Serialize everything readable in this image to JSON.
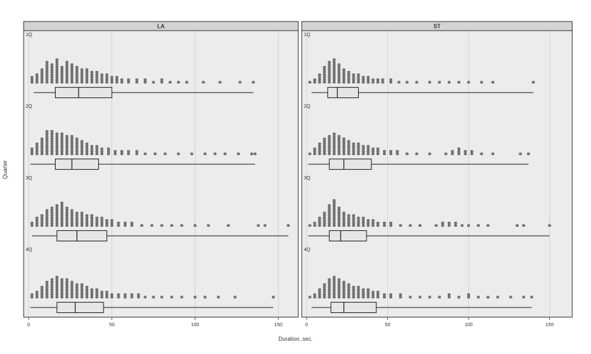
{
  "chart_data": {
    "type": "dotplot-boxplot",
    "xlabel": "Duration..sec.",
    "ylabel": "Quarter",
    "x_ticks": [
      0,
      50,
      100,
      150
    ],
    "grid": true,
    "panels": [
      {
        "name": "LA",
        "xlim": [
          -3,
          162
        ],
        "rows": [
          {
            "quarter": "1Q",
            "box": {
              "whisker_low": 3,
              "q1": 16,
              "median": 30,
              "q3": 50,
              "whisker_high": 135
            },
            "dots": {
              "x": [
                2,
                5,
                8,
                11,
                14,
                17,
                20,
                23,
                26,
                29,
                32,
                35,
                38,
                41,
                44,
                47,
                50,
                53,
                56,
                60,
                65,
                70,
                75,
                80,
                85,
                90,
                95,
                105,
                115,
                127,
                135
              ],
              "counts": [
                3,
                4,
                6,
                9,
                8,
                10,
                7,
                9,
                8,
                7,
                6,
                6,
                5,
                5,
                4,
                4,
                3,
                3,
                2,
                2,
                2,
                2,
                1,
                2,
                1,
                1,
                1,
                1,
                1,
                1,
                1
              ]
            }
          },
          {
            "quarter": "2Q",
            "box": {
              "whisker_low": 1,
              "q1": 16,
              "median": 26,
              "q3": 42,
              "whisker_high": 136
            },
            "dots": {
              "x": [
                2,
                5,
                8,
                11,
                14,
                17,
                20,
                23,
                26,
                29,
                32,
                35,
                38,
                41,
                44,
                48,
                52,
                56,
                60,
                65,
                70,
                76,
                82,
                90,
                98,
                106,
                112,
                118,
                126,
                134,
                136
              ],
              "counts": [
                3,
                5,
                7,
                10,
                10,
                9,
                9,
                8,
                8,
                7,
                6,
                5,
                4,
                4,
                3,
                3,
                2,
                2,
                2,
                2,
                1,
                1,
                1,
                1,
                1,
                1,
                1,
                1,
                1,
                1,
                1
              ]
            }
          },
          {
            "quarter": "3Q",
            "box": {
              "whisker_low": 2,
              "q1": 17,
              "median": 29,
              "q3": 47,
              "whisker_high": 156
            },
            "dots": {
              "x": [
                2,
                5,
                8,
                11,
                14,
                17,
                20,
                23,
                26,
                29,
                32,
                35,
                38,
                41,
                44,
                47,
                50,
                54,
                58,
                62,
                68,
                74,
                80,
                86,
                92,
                100,
                108,
                120,
                138,
                142,
                156
              ],
              "counts": [
                2,
                4,
                5,
                7,
                8,
                9,
                10,
                8,
                7,
                6,
                6,
                5,
                5,
                4,
                4,
                3,
                3,
                2,
                2,
                2,
                1,
                1,
                1,
                1,
                1,
                1,
                1,
                1,
                1,
                1,
                1
              ]
            }
          },
          {
            "quarter": "4Q",
            "box": {
              "whisker_low": 1,
              "q1": 17,
              "median": 28,
              "q3": 45,
              "whisker_high": 147
            },
            "dots": {
              "x": [
                2,
                5,
                8,
                11,
                14,
                17,
                20,
                23,
                26,
                29,
                32,
                35,
                38,
                41,
                44,
                47,
                50,
                54,
                58,
                62,
                66,
                70,
                75,
                80,
                86,
                92,
                100,
                106,
                114,
                124,
                147
              ],
              "counts": [
                2,
                3,
                5,
                7,
                8,
                9,
                8,
                8,
                7,
                6,
                6,
                5,
                4,
                4,
                3,
                3,
                2,
                2,
                2,
                2,
                2,
                1,
                1,
                1,
                1,
                1,
                1,
                1,
                1,
                1,
                1
              ]
            }
          }
        ]
      },
      {
        "name": "ST",
        "xlim": [
          -3,
          164
        ],
        "rows": [
          {
            "quarter": "1Q",
            "box": {
              "whisker_low": 3,
              "q1": 13,
              "median": 19,
              "q3": 32,
              "whisker_high": 140
            },
            "dots": {
              "x": [
                2,
                5,
                8,
                11,
                14,
                17,
                20,
                23,
                26,
                29,
                32,
                35,
                38,
                41,
                44,
                47,
                52,
                57,
                62,
                68,
                76,
                82,
                88,
                94,
                100,
                108,
                115,
                140
              ],
              "counts": [
                1,
                2,
                4,
                7,
                9,
                10,
                8,
                6,
                5,
                4,
                4,
                3,
                3,
                2,
                2,
                2,
                2,
                1,
                1,
                1,
                1,
                1,
                1,
                1,
                1,
                1,
                1,
                1
              ]
            }
          },
          {
            "quarter": "2Q",
            "box": {
              "whisker_low": 1,
              "q1": 14,
              "median": 23,
              "q3": 40,
              "whisker_high": 137
            },
            "dots": {
              "x": [
                2,
                5,
                8,
                11,
                14,
                17,
                20,
                23,
                26,
                29,
                32,
                35,
                38,
                41,
                44,
                48,
                52,
                56,
                62,
                68,
                76,
                86,
                90,
                94,
                98,
                102,
                108,
                115,
                132,
                137
              ],
              "counts": [
                1,
                3,
                5,
                7,
                8,
                9,
                8,
                7,
                6,
                5,
                5,
                4,
                4,
                3,
                3,
                2,
                2,
                2,
                1,
                1,
                1,
                1,
                2,
                3,
                2,
                2,
                1,
                1,
                1,
                1
              ]
            }
          },
          {
            "quarter": "3Q",
            "box": {
              "whisker_low": 1,
              "q1": 14,
              "median": 21,
              "q3": 37,
              "whisker_high": 150
            },
            "dots": {
              "x": [
                2,
                5,
                8,
                11,
                14,
                17,
                20,
                23,
                26,
                29,
                32,
                35,
                38,
                41,
                44,
                48,
                52,
                58,
                64,
                70,
                80,
                84,
                88,
                92,
                96,
                100,
                106,
                112,
                130,
                134,
                150
              ],
              "counts": [
                1,
                2,
                4,
                6,
                9,
                11,
                8,
                6,
                5,
                5,
                4,
                4,
                3,
                3,
                2,
                2,
                2,
                1,
                1,
                1,
                1,
                2,
                2,
                2,
                1,
                1,
                1,
                1,
                1,
                1,
                1
              ]
            }
          },
          {
            "quarter": "4Q",
            "box": {
              "whisker_low": 3,
              "q1": 15,
              "median": 23,
              "q3": 43,
              "whisker_high": 139
            },
            "dots": {
              "x": [
                2,
                5,
                8,
                11,
                14,
                17,
                20,
                23,
                26,
                29,
                32,
                35,
                38,
                41,
                44,
                48,
                52,
                58,
                64,
                70,
                76,
                82,
                88,
                94,
                100,
                106,
                112,
                118,
                126,
                134,
                139
              ],
              "counts": [
                1,
                2,
                4,
                6,
                8,
                9,
                8,
                7,
                6,
                5,
                5,
                4,
                4,
                3,
                3,
                2,
                2,
                2,
                1,
                1,
                1,
                1,
                2,
                1,
                2,
                1,
                1,
                1,
                1,
                1,
                1
              ]
            }
          }
        ]
      }
    ]
  }
}
